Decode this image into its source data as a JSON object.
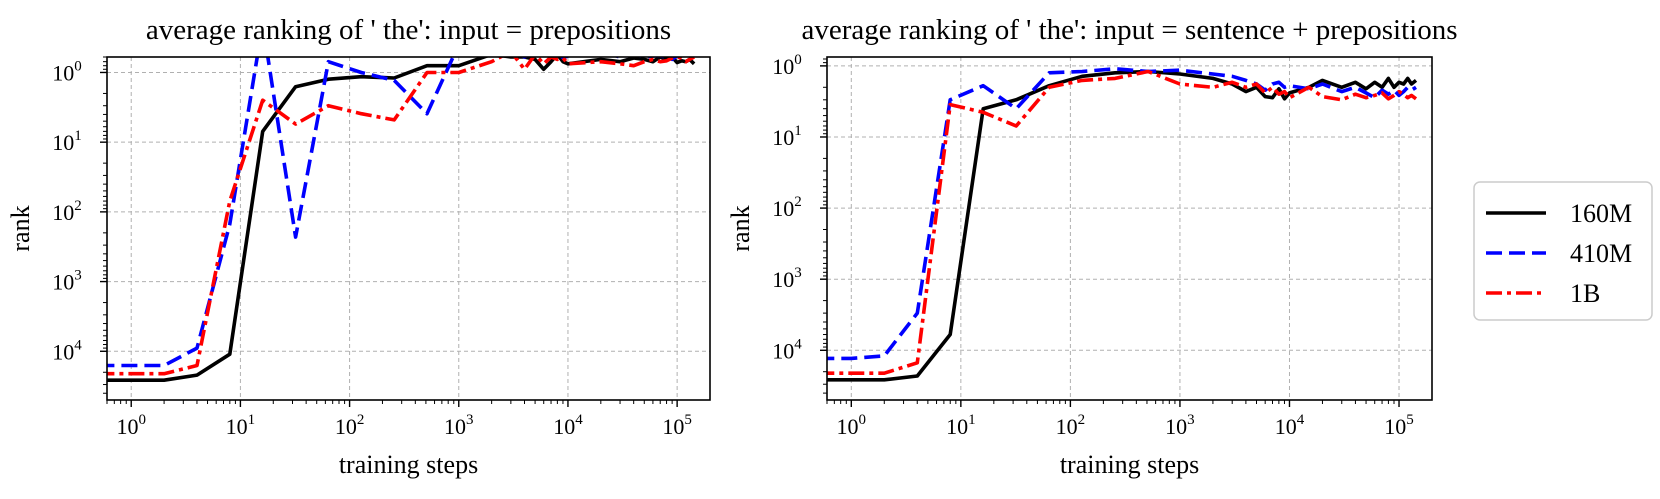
{
  "legend": {
    "placement": "right",
    "entries": [
      {
        "series": "160M",
        "color": "#000000",
        "dash": "solid"
      },
      {
        "series": "410M",
        "color": "#0000ff",
        "dash": "dashed"
      },
      {
        "series": "1B",
        "color": "#ff0000",
        "dash": "dashdot"
      }
    ]
  },
  "chart_data": [
    {
      "type": "line",
      "title": "average ranking of ' the': input = prepositions",
      "xlabel": "training steps",
      "ylabel": "rank",
      "xscale": "log",
      "yscale": "log",
      "yaxis_inverted": true,
      "xlim": [
        0.6,
        200000
      ],
      "ylim": [
        50000,
        0.6
      ],
      "xticks": [
        {
          "value": 1,
          "base": "10",
          "exp": "0"
        },
        {
          "value": 10,
          "base": "10",
          "exp": "1"
        },
        {
          "value": 100,
          "base": "10",
          "exp": "2"
        },
        {
          "value": 1000,
          "base": "10",
          "exp": "3"
        },
        {
          "value": 10000,
          "base": "10",
          "exp": "4"
        },
        {
          "value": 100000,
          "base": "10",
          "exp": "5"
        }
      ],
      "yticks": [
        {
          "value": 1,
          "base": "10",
          "exp": "0"
        },
        {
          "value": 10,
          "base": "10",
          "exp": "1"
        },
        {
          "value": 100,
          "base": "10",
          "exp": "2"
        },
        {
          "value": 1000,
          "base": "10",
          "exp": "3"
        },
        {
          "value": 10000,
          "base": "10",
          "exp": "4"
        }
      ],
      "grid": true,
      "series": [
        {
          "name": "160M",
          "color": "#000000",
          "dash": "solid",
          "x": [
            0.5,
            1,
            2,
            4,
            8,
            16,
            32,
            64,
            128,
            256,
            512,
            1000,
            2000,
            3000,
            4000,
            5000,
            6000,
            7000,
            8000,
            9000,
            10000,
            20000,
            30000,
            40000,
            50000,
            60000,
            70000,
            80000,
            90000,
            100000,
            110000,
            120000,
            130000,
            143000
          ],
          "y": [
            26000,
            26000,
            26000,
            22000,
            11000,
            7,
            1.6,
            1.25,
            1.15,
            1.2,
            0.8,
            0.8,
            0.55,
            0.6,
            0.6,
            0.65,
            0.9,
            0.7,
            0.55,
            0.7,
            0.75,
            0.65,
            0.7,
            0.62,
            0.65,
            0.7,
            0.6,
            0.65,
            0.6,
            0.72,
            0.68,
            0.7,
            0.65,
            0.75
          ]
        },
        {
          "name": "410M",
          "color": "#0000ff",
          "dash": "dashed",
          "x": [
            0.5,
            1,
            2,
            4,
            8,
            16,
            32,
            64,
            128,
            256,
            512,
            1000,
            2000,
            3000,
            4000,
            5000,
            6000,
            7000,
            8000,
            9000,
            10000,
            20000,
            30000,
            40000,
            50000,
            60000,
            70000,
            80000,
            90000,
            100000,
            110000,
            120000,
            130000,
            143000
          ],
          "y": [
            16000,
            16000,
            16000,
            9000,
            150,
            0.2,
            230,
            0.7,
            1.0,
            1.3,
            3.9,
            0.4,
            0.45,
            0.48,
            0.6,
            0.5,
            0.55,
            0.48,
            0.5,
            0.62,
            0.58,
            0.5,
            0.6,
            0.55,
            0.6,
            0.58,
            0.58,
            0.6,
            0.65,
            0.58,
            0.52,
            0.55,
            0.5,
            0.55
          ]
        },
        {
          "name": "1B",
          "color": "#ff0000",
          "dash": "dashdot",
          "x": [
            0.5,
            1,
            2,
            4,
            8,
            16,
            32,
            64,
            128,
            256,
            512,
            1000,
            2000,
            3000,
            4000,
            5000,
            6000,
            7000,
            8000,
            9000,
            10000,
            20000,
            30000,
            40000,
            50000,
            60000,
            70000,
            80000,
            90000,
            100000,
            110000,
            120000,
            130000,
            143000
          ],
          "y": [
            21000,
            21000,
            21000,
            16000,
            70,
            2.5,
            5.5,
            3,
            3.9,
            4.8,
            1.0,
            1.0,
            0.7,
            0.5,
            0.9,
            0.55,
            0.75,
            0.6,
            0.65,
            0.62,
            0.75,
            0.7,
            0.75,
            0.8,
            0.7,
            0.65,
            0.7,
            0.68,
            0.62,
            0.6,
            0.62,
            0.7,
            0.65,
            0.6
          ]
        }
      ]
    },
    {
      "type": "line",
      "title": "average ranking of ' the': input = sentence + prepositions",
      "xlabel": "training steps",
      "ylabel": "rank",
      "xscale": "log",
      "yscale": "log",
      "yaxis_inverted": true,
      "xlim": [
        0.6,
        200000
      ],
      "ylim": [
        50000,
        0.75
      ],
      "xticks": [
        {
          "value": 1,
          "base": "10",
          "exp": "0"
        },
        {
          "value": 10,
          "base": "10",
          "exp": "1"
        },
        {
          "value": 100,
          "base": "10",
          "exp": "2"
        },
        {
          "value": 1000,
          "base": "10",
          "exp": "3"
        },
        {
          "value": 10000,
          "base": "10",
          "exp": "4"
        },
        {
          "value": 100000,
          "base": "10",
          "exp": "5"
        }
      ],
      "yticks": [
        {
          "value": 1,
          "base": "10",
          "exp": "0"
        },
        {
          "value": 10,
          "base": "10",
          "exp": "1"
        },
        {
          "value": 100,
          "base": "10",
          "exp": "2"
        },
        {
          "value": 1000,
          "base": "10",
          "exp": "3"
        },
        {
          "value": 10000,
          "base": "10",
          "exp": "4"
        }
      ],
      "grid": true,
      "series": [
        {
          "name": "160M",
          "color": "#000000",
          "dash": "solid",
          "x": [
            0.5,
            1,
            2,
            4,
            8,
            16,
            32,
            64,
            128,
            256,
            512,
            1000,
            2000,
            3000,
            4000,
            5000,
            6000,
            7000,
            8000,
            9000,
            10000,
            15000,
            20000,
            30000,
            40000,
            50000,
            60000,
            70000,
            80000,
            90000,
            100000,
            110000,
            120000,
            130000,
            143000
          ],
          "y": [
            26000,
            26000,
            26000,
            23000,
            6000,
            4,
            3,
            1.9,
            1.4,
            1.25,
            1.2,
            1.3,
            1.5,
            1.8,
            2.3,
            2.0,
            2.7,
            2.8,
            2.1,
            2.9,
            2.4,
            2.0,
            1.6,
            2.0,
            1.7,
            2.1,
            1.7,
            2.0,
            1.5,
            2.0,
            1.7,
            1.8,
            1.5,
            1.8,
            1.6
          ]
        },
        {
          "name": "410M",
          "color": "#0000ff",
          "dash": "dashed",
          "x": [
            0.5,
            1,
            2,
            4,
            8,
            16,
            32,
            64,
            128,
            256,
            512,
            1000,
            2000,
            3000,
            4000,
            5000,
            6000,
            7000,
            8000,
            9000,
            10000,
            15000,
            20000,
            30000,
            40000,
            50000,
            60000,
            70000,
            80000,
            90000,
            100000,
            110000,
            120000,
            130000,
            143000
          ],
          "y": [
            13000,
            13000,
            12000,
            3000,
            3,
            1.9,
            4.0,
            1.25,
            1.2,
            1.1,
            1.2,
            1.15,
            1.3,
            1.4,
            1.6,
            1.8,
            2.2,
            1.8,
            1.7,
            2.0,
            1.9,
            2.1,
            1.8,
            2.3,
            2.0,
            2.4,
            2.8,
            2.2,
            2.5,
            2.2,
            2.6,
            2.3,
            2.0,
            2.2,
            2.0
          ]
        },
        {
          "name": "1B",
          "color": "#ff0000",
          "dash": "dashdot",
          "x": [
            0.5,
            1,
            2,
            4,
            8,
            16,
            32,
            64,
            128,
            256,
            512,
            1000,
            2000,
            3000,
            4000,
            5000,
            6000,
            7000,
            8000,
            9000,
            10000,
            15000,
            20000,
            30000,
            40000,
            50000,
            60000,
            70000,
            80000,
            90000,
            100000,
            110000,
            120000,
            130000,
            143000
          ],
          "y": [
            21000,
            21000,
            21000,
            15000,
            3.5,
            4.5,
            7,
            2.0,
            1.6,
            1.5,
            1.2,
            1.8,
            2.0,
            1.7,
            2.0,
            1.8,
            2.4,
            2.0,
            2.5,
            2.3,
            2.8,
            2.0,
            2.7,
            3.0,
            2.5,
            2.8,
            2.6,
            2.4,
            2.9,
            2.6,
            2.3,
            2.5,
            2.8,
            2.6,
            2.9
          ]
        }
      ]
    }
  ]
}
